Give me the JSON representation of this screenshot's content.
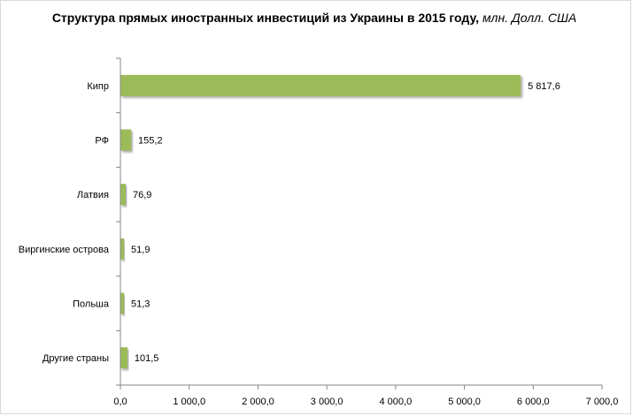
{
  "chart_data": {
    "type": "bar",
    "orientation": "horizontal",
    "title": "Структура прямых иностранных инвестиций из Украины в 2015 году,",
    "subtitle": "млн. Долл. США",
    "categories": [
      "Кипр",
      "РФ",
      "Латвия",
      "Виргинские острова",
      "Польша",
      "Другие страны"
    ],
    "values": [
      5817.6,
      155.2,
      76.9,
      51.9,
      51.3,
      101.5
    ],
    "value_labels": [
      "5 817,6",
      "155,2",
      "76,9",
      "51,9",
      "51,3",
      "101,5"
    ],
    "xlim": [
      0,
      7000
    ],
    "x_ticks": [
      0,
      1000,
      2000,
      3000,
      4000,
      5000,
      6000,
      7000
    ],
    "x_tick_labels": [
      "0,0",
      "1 000,0",
      "2 000,0",
      "3 000,0",
      "4 000,0",
      "5 000,0",
      "6 000,0",
      "7 000,0"
    ],
    "grid": false,
    "legend": "none",
    "bar_color": "#9bbb59"
  }
}
